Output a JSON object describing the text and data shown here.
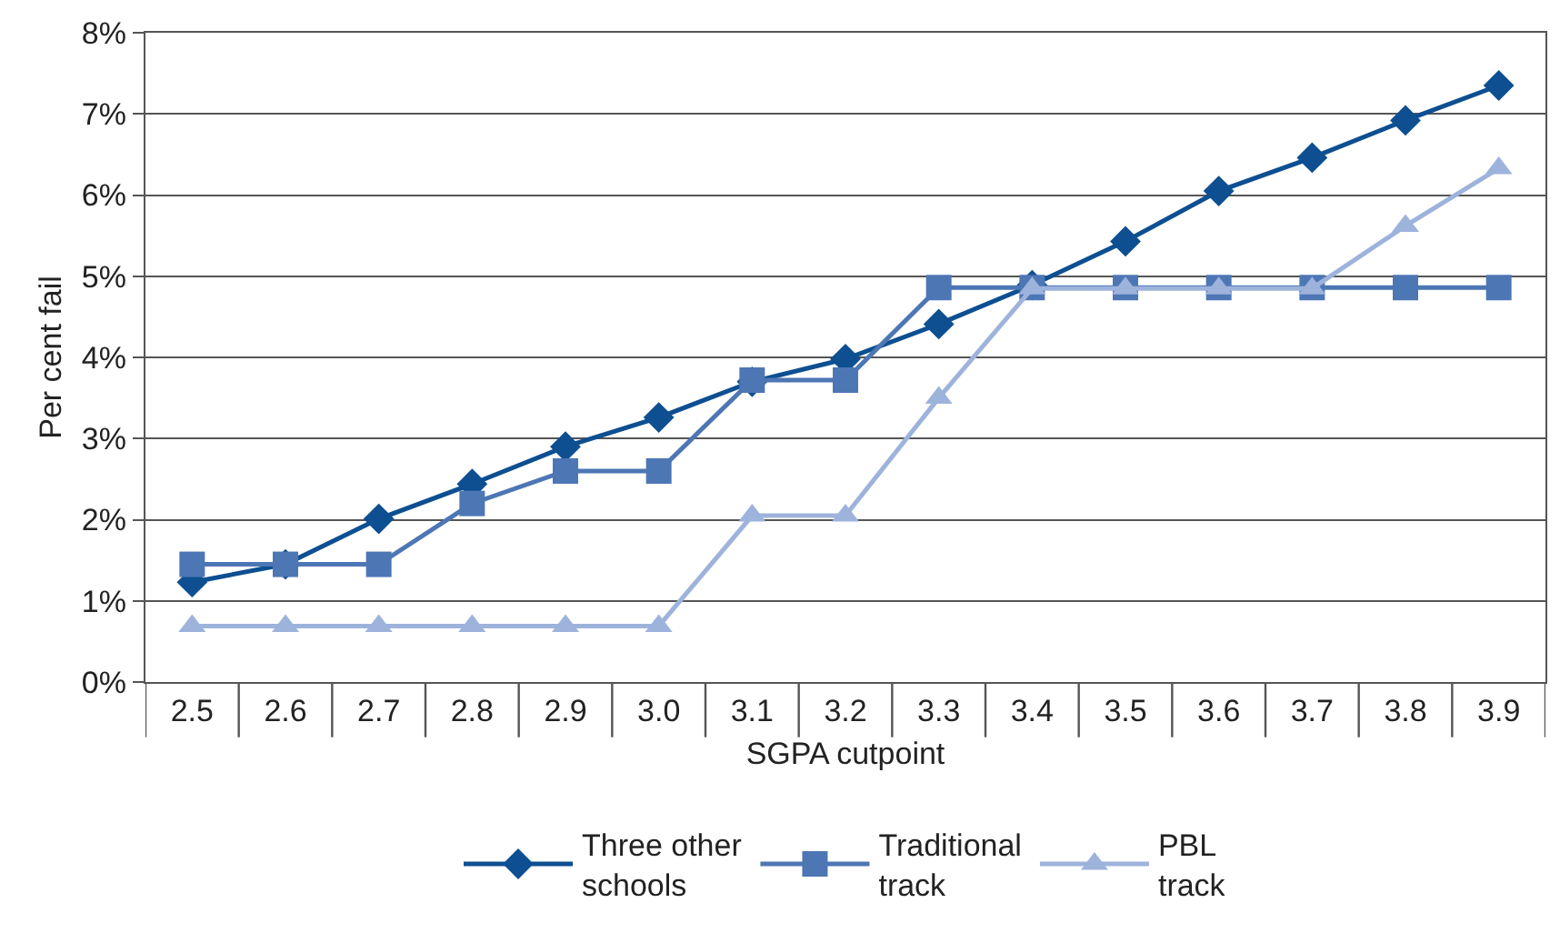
{
  "chart_data": {
    "type": "line",
    "xlabel": "SGPA cutpoint",
    "ylabel": "Per cent fail",
    "categories": [
      "2.5",
      "2.6",
      "2.7",
      "2.8",
      "2.9",
      "3.0",
      "3.1",
      "3.2",
      "3.3",
      "3.4",
      "3.5",
      "3.6",
      "3.7",
      "3.8",
      "3.9"
    ],
    "series": [
      {
        "name": "Three other schools",
        "color": "#0d4f91",
        "marker": "diamond",
        "values": [
          1.23,
          1.45,
          2.01,
          2.44,
          2.9,
          3.26,
          3.7,
          3.98,
          4.41,
          4.89,
          5.43,
          6.05,
          6.46,
          6.92,
          7.35
        ]
      },
      {
        "name": "Traditional track",
        "color": "#4d76b4",
        "marker": "square",
        "values": [
          1.45,
          1.45,
          1.45,
          2.2,
          2.6,
          2.6,
          3.72,
          3.72,
          4.86,
          4.86,
          4.86,
          4.86,
          4.86,
          4.86,
          4.86
        ]
      },
      {
        "name": "PBL track",
        "color": "#9db3dc",
        "marker": "triangle",
        "values": [
          0.69,
          0.69,
          0.69,
          0.69,
          0.69,
          0.69,
          2.05,
          2.05,
          3.5,
          4.85,
          4.85,
          4.85,
          4.85,
          5.62,
          6.33
        ]
      }
    ],
    "ylim": [
      0,
      8
    ],
    "yticks": [
      {
        "value": 0,
        "label": "0%"
      },
      {
        "value": 1,
        "label": "1%"
      },
      {
        "value": 2,
        "label": "2%"
      },
      {
        "value": 3,
        "label": "3%"
      },
      {
        "value": 4,
        "label": "4%"
      },
      {
        "value": 5,
        "label": "5%"
      },
      {
        "value": 6,
        "label": "6%"
      },
      {
        "value": 7,
        "label": "7%"
      },
      {
        "value": 8,
        "label": "8%"
      }
    ],
    "grid": "y",
    "legend": "bottom",
    "line_style": "solid"
  }
}
